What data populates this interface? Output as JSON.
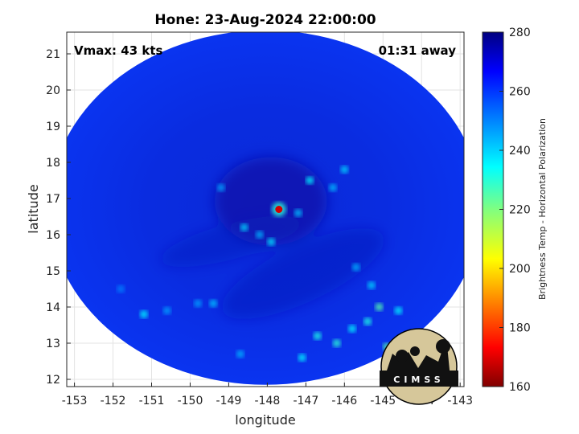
{
  "chart_data": {
    "type": "heatmap",
    "title": "Hone: 23-Aug-2024 22:00:00",
    "xlabel": "longitude",
    "ylabel": "latitude",
    "xlim": [
      -153.2,
      -142.9
    ],
    "ylim": [
      11.8,
      21.6
    ],
    "x_ticks": [
      -153,
      -152,
      -151,
      -150,
      -149,
      -148,
      -147,
      -146,
      -145,
      -144,
      -143
    ],
    "y_ticks": [
      12,
      13,
      14,
      15,
      16,
      17,
      18,
      19,
      20,
      21
    ],
    "grid": true,
    "colorbar": {
      "label": "Brightness Temp - Horizontal Polarization",
      "range": [
        160,
        280
      ],
      "ticks": [
        160,
        180,
        200,
        220,
        240,
        260,
        280
      ],
      "colormap": "jet"
    },
    "annotations": [
      {
        "text": "Vmax: 43 kts",
        "position": "top-left"
      },
      {
        "text": "01:31 away",
        "position": "top-right"
      }
    ],
    "storm_center": {
      "lon": -147.7,
      "lat": 16.7,
      "value": 170
    },
    "swath": {
      "center_lon": -148.05,
      "center_lat": 16.75,
      "half_width_deg": 5.6,
      "half_height_deg": 4.9
    },
    "background_value": 265,
    "feature_points": [
      {
        "lon": -149.2,
        "lat": 17.3,
        "value": 246
      },
      {
        "lon": -148.6,
        "lat": 16.2,
        "value": 240
      },
      {
        "lon": -148.2,
        "lat": 16.0,
        "value": 244
      },
      {
        "lon": -147.9,
        "lat": 15.8,
        "value": 238
      },
      {
        "lon": -147.2,
        "lat": 16.6,
        "value": 242
      },
      {
        "lon": -146.9,
        "lat": 17.5,
        "value": 236
      },
      {
        "lon": -146.3,
        "lat": 17.3,
        "value": 243
      },
      {
        "lon": -146.0,
        "lat": 17.8,
        "value": 240
      },
      {
        "lon": -145.7,
        "lat": 15.1,
        "value": 244
      },
      {
        "lon": -145.3,
        "lat": 14.6,
        "value": 240
      },
      {
        "lon": -145.1,
        "lat": 14.0,
        "value": 225
      },
      {
        "lon": -144.6,
        "lat": 13.9,
        "value": 236
      },
      {
        "lon": -146.7,
        "lat": 13.2,
        "value": 232
      },
      {
        "lon": -146.2,
        "lat": 13.0,
        "value": 230
      },
      {
        "lon": -145.8,
        "lat": 13.4,
        "value": 236
      },
      {
        "lon": -145.4,
        "lat": 13.6,
        "value": 232
      },
      {
        "lon": -144.9,
        "lat": 12.9,
        "value": 225
      },
      {
        "lon": -147.1,
        "lat": 12.6,
        "value": 236
      },
      {
        "lon": -148.7,
        "lat": 12.7,
        "value": 244
      },
      {
        "lon": -150.6,
        "lat": 13.9,
        "value": 246
      },
      {
        "lon": -151.2,
        "lat": 13.8,
        "value": 236
      },
      {
        "lon": -149.8,
        "lat": 14.1,
        "value": 246
      },
      {
        "lon": -149.4,
        "lat": 14.1,
        "value": 242
      },
      {
        "lon": -151.8,
        "lat": 14.5,
        "value": 250
      }
    ]
  },
  "logo": {
    "text": "CIMSS"
  }
}
